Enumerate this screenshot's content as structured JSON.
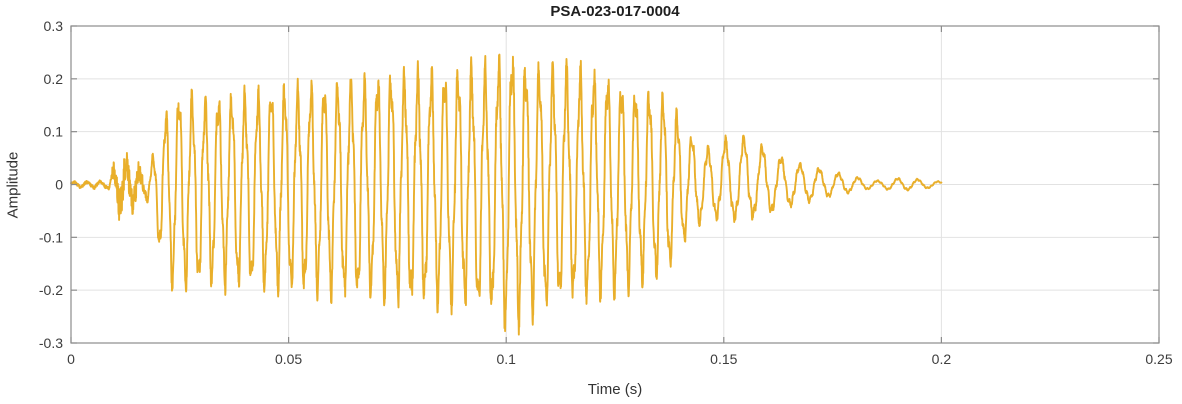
{
  "chart_data": {
    "type": "line",
    "title": "PSA-023-017-0004",
    "xlabel": "Time (s)",
    "ylabel": "Amplitude",
    "xlim": [
      0,
      0.25
    ],
    "ylim": [
      -0.3,
      0.3
    ],
    "xticks": [
      0,
      0.05,
      0.1,
      0.15,
      0.2,
      0.25
    ],
    "yticks": [
      -0.3,
      -0.2,
      -0.1,
      0,
      0.1,
      0.2,
      0.3
    ],
    "grid": true,
    "legend": false,
    "series_name": "waveform",
    "signal": {
      "duration_s": 0.2,
      "sample_dt_s": 5e-05,
      "freq_profile_hz": [
        [
          0,
          332
        ],
        [
          0.02,
          332
        ],
        [
          0.1,
          322
        ],
        [
          0.138,
          312
        ],
        [
          0.15,
          238
        ],
        [
          0.2,
          212
        ]
      ],
      "envelope_upper": [
        [
          0,
          0.004
        ],
        [
          0.0085,
          0.006
        ],
        [
          0.0095,
          0.032
        ],
        [
          0.012,
          0.036
        ],
        [
          0.015,
          0.028
        ],
        [
          0.017,
          0.016
        ],
        [
          0.0185,
          0.04
        ],
        [
          0.021,
          0.1
        ],
        [
          0.023,
          0.155
        ],
        [
          0.027,
          0.15
        ],
        [
          0.032,
          0.147
        ],
        [
          0.04,
          0.155
        ],
        [
          0.05,
          0.165
        ],
        [
          0.06,
          0.175
        ],
        [
          0.07,
          0.185
        ],
        [
          0.08,
          0.193
        ],
        [
          0.09,
          0.198
        ],
        [
          0.096,
          0.2
        ],
        [
          0.101,
          0.228
        ],
        [
          0.105,
          0.205
        ],
        [
          0.11,
          0.2
        ],
        [
          0.115,
          0.205
        ],
        [
          0.12,
          0.19
        ],
        [
          0.125,
          0.18
        ],
        [
          0.13,
          0.165
        ],
        [
          0.135,
          0.155
        ],
        [
          0.138,
          0.14
        ],
        [
          0.142,
          0.085
        ],
        [
          0.146,
          0.062
        ],
        [
          0.149,
          0.075
        ],
        [
          0.153,
          0.088
        ],
        [
          0.157,
          0.078
        ],
        [
          0.161,
          0.052
        ],
        [
          0.166,
          0.04
        ],
        [
          0.171,
          0.03
        ],
        [
          0.176,
          0.021
        ],
        [
          0.181,
          0.012
        ],
        [
          0.186,
          0.006
        ],
        [
          0.191,
          0.012
        ],
        [
          0.196,
          0.008
        ],
        [
          0.2,
          0.005
        ]
      ],
      "envelope_lower": [
        [
          0,
          0.004
        ],
        [
          0.0085,
          0.006
        ],
        [
          0.0095,
          0.036
        ],
        [
          0.012,
          0.042
        ],
        [
          0.015,
          0.032
        ],
        [
          0.017,
          0.018
        ],
        [
          0.0185,
          0.06
        ],
        [
          0.021,
          0.13
        ],
        [
          0.023,
          0.175
        ],
        [
          0.027,
          0.178
        ],
        [
          0.032,
          0.172
        ],
        [
          0.04,
          0.178
        ],
        [
          0.05,
          0.185
        ],
        [
          0.06,
          0.19
        ],
        [
          0.07,
          0.198
        ],
        [
          0.08,
          0.205
        ],
        [
          0.09,
          0.21
        ],
        [
          0.096,
          0.22
        ],
        [
          0.1,
          0.245
        ],
        [
          0.104,
          0.235
        ],
        [
          0.11,
          0.205
        ],
        [
          0.115,
          0.2
        ],
        [
          0.12,
          0.195
        ],
        [
          0.125,
          0.185
        ],
        [
          0.13,
          0.17
        ],
        [
          0.135,
          0.158
        ],
        [
          0.138,
          0.142
        ],
        [
          0.142,
          0.082
        ],
        [
          0.146,
          0.058
        ],
        [
          0.15,
          0.06
        ],
        [
          0.155,
          0.058
        ],
        [
          0.16,
          0.05
        ],
        [
          0.165,
          0.038
        ],
        [
          0.17,
          0.028
        ],
        [
          0.175,
          0.02
        ],
        [
          0.18,
          0.012
        ],
        [
          0.185,
          0.006
        ],
        [
          0.19,
          0.011
        ],
        [
          0.195,
          0.008
        ],
        [
          0.2,
          0.004
        ]
      ],
      "noise_envelope": [
        [
          0,
          0.002
        ],
        [
          0.008,
          0.003
        ],
        [
          0.0092,
          0.0
        ],
        [
          0.0095,
          0.025
        ],
        [
          0.012,
          0.028
        ],
        [
          0.0155,
          0.022
        ],
        [
          0.017,
          0.008
        ],
        [
          0.019,
          0.0
        ],
        [
          0.2,
          0.0
        ]
      ],
      "texture_hz": 1230,
      "texture_ratio": 0.15,
      "noise_ratio": 0.08,
      "noise_seed": 7
    }
  },
  "colors": {
    "background": "#FFFFFF",
    "line": "#E9AF2B",
    "grid": "#E2E2E2",
    "axis": "#8C8C8C",
    "tick_label": "#3D3D3D",
    "title": "#1F1F1F"
  }
}
